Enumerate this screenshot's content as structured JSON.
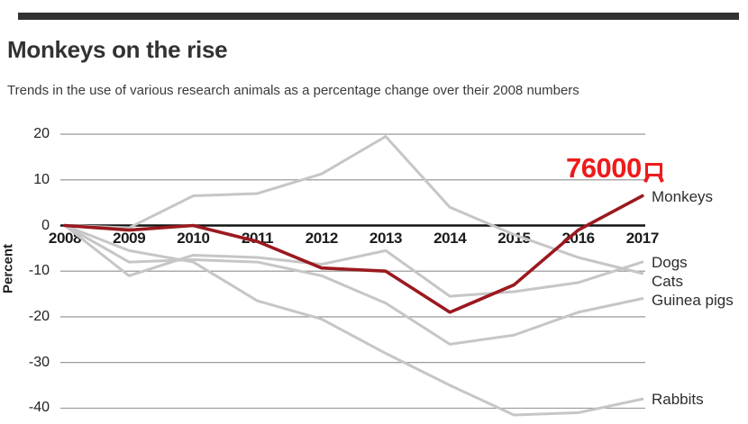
{
  "colors": {
    "top_rule": "#323232",
    "emphasis_line": "#9b191f",
    "annotation_red": "#ee1b1b",
    "muted_line": "#c6c6c6",
    "grid_line": "#8f8f8f",
    "zero_axis": "#141414",
    "text": "#323232"
  },
  "chart_data": {
    "type": "line",
    "title": "Monkeys on the rise",
    "subtitle": "Trends in the use of various research animals as a percentage change over their 2008 numbers",
    "ylabel": "Percent",
    "categories": [
      "2008",
      "2009",
      "2010",
      "2011",
      "2012",
      "2013",
      "2014",
      "2015",
      "2016",
      "2017"
    ],
    "y_ticks": [
      20,
      10,
      0,
      -10,
      -20,
      -30,
      -40
    ],
    "ylim": [
      -44,
      24
    ],
    "grid": true,
    "zero_axis_emphasized": true,
    "legend_position": "labels at right end of each line",
    "series": [
      {
        "name": "Monkeys",
        "color": "#9b191f",
        "emphasis": true,
        "values": [
          0,
          -1,
          0,
          -3.5,
          -9.3,
          -10,
          -19,
          -13,
          -1,
          6.5
        ]
      },
      {
        "name": "Dogs",
        "color": "#c6c6c6",
        "emphasis": false,
        "values": [
          0,
          -11,
          -6.5,
          -7,
          -8.5,
          -5.5,
          -15.5,
          -14.5,
          -12.5,
          -8
        ]
      },
      {
        "name": "Cats",
        "color": "#c6c6c6",
        "emphasis": false,
        "values": [
          0,
          -0.5,
          6.5,
          7,
          11.3,
          19.5,
          4,
          -2,
          -7,
          -10.5
        ]
      },
      {
        "name": "Guinea pigs",
        "color": "#c6c6c6",
        "emphasis": false,
        "values": [
          0,
          -8,
          -7.5,
          -8,
          -11,
          -17,
          -26,
          -24,
          -19,
          -16
        ]
      },
      {
        "name": "Rabbits",
        "color": "#c6c6c6",
        "emphasis": false,
        "values": [
          0,
          -5.5,
          -8,
          -16.5,
          -20.5,
          -28,
          -35,
          -41.5,
          -41,
          -38
        ]
      }
    ],
    "annotation": {
      "text": "76000只",
      "number": "76000",
      "suffix_glyph": "只",
      "color": "#ee1b1b",
      "attached_to": "Monkeys line, 2017 end"
    }
  }
}
